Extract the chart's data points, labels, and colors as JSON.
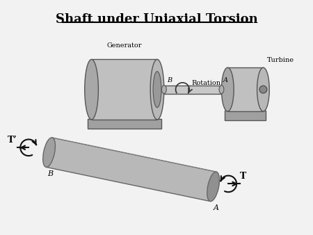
{
  "title": "Shaft under Uniaxial Torsion",
  "bg_color": "#f2f2f2",
  "shaft_color": "#b0b0b0",
  "dark_color": "#404040",
  "text_color": "#000000",
  "label_generator": "Generator",
  "label_turbine": "Turbine",
  "label_rotation": "Rotation",
  "label_A": "A",
  "label_B": "B",
  "label_T": "T",
  "label_Tp": "T’",
  "figsize": [
    4.5,
    3.38
  ],
  "dpi": 100
}
